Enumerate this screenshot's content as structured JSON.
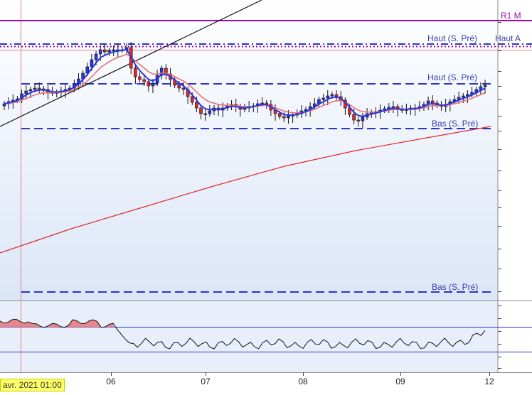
{
  "colors": {
    "background_top": "#ffffff",
    "background_bottom": "#dbe6f7",
    "purple_level": "#9b0aa8",
    "blue_level": "#2a35c8",
    "pink_line": "#e05a78",
    "red_ma": "#e02828",
    "blue_ma": "#2a35e0",
    "salmon_ma": "#e87070",
    "candle_up": "#2a35e0",
    "candle_down": "#e02828",
    "axis_text": "#222222",
    "label_text": "#3a3aaa"
  },
  "levels": {
    "r1_m": {
      "label": "R1 M"
    },
    "haut_pre_top": {
      "label": "Haut (S. Pré)"
    },
    "haut_a": {
      "label": "Haut A"
    },
    "haut_pre_mid": {
      "label": "Haut (S. Pré)"
    },
    "bas_pre_mid": {
      "label": "Bas (S. Pré)"
    },
    "bas_pre_low": {
      "label": "Bas (S. Pré)"
    }
  },
  "chart_data": {
    "type": "candlestick",
    "xlabel": "",
    "ylabel": "",
    "x_ticks": [
      "06",
      "07",
      "08",
      "09",
      "12"
    ],
    "cursor_date": "avr. 2021 01:00",
    "grid": false,
    "legend": "none",
    "price_levels": [
      {
        "name": "R1 M",
        "style": "solid",
        "color": "purple"
      },
      {
        "name": "Haut (S. Pré)",
        "style": "dash-dot",
        "color": "blue"
      },
      {
        "name": "Haut A",
        "style": "dotted",
        "color": "purple"
      },
      {
        "name": "Haut (S. Pré)",
        "style": "dashed",
        "color": "blue"
      },
      {
        "name": "Bas (S. Pré)",
        "style": "dashed",
        "color": "blue"
      },
      {
        "name": "Bas (S. Pré)",
        "style": "dashed",
        "color": "blue"
      }
    ],
    "indicators": [
      "fast moving average (blue)",
      "moving average (salmon)",
      "long moving average (red)",
      "trend line (black)",
      "oscillator sub-panel"
    ]
  }
}
